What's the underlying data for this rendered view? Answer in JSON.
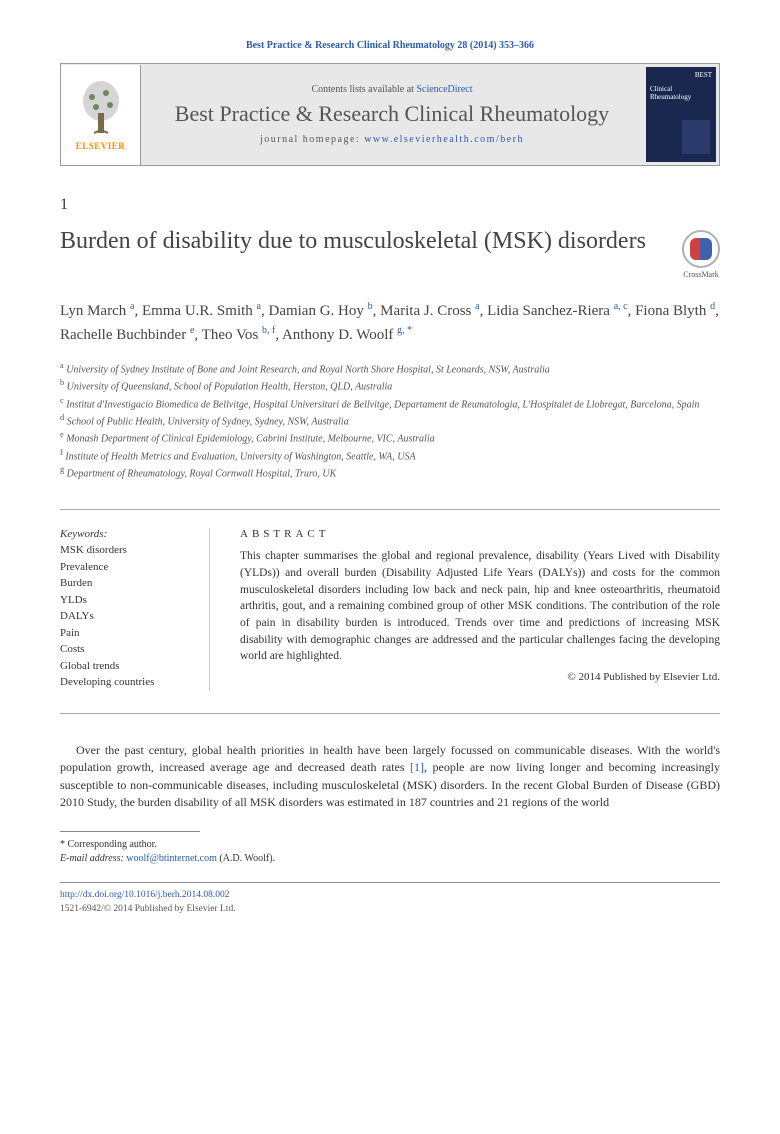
{
  "header_ref": "Best Practice & Research Clinical Rheumatology 28 (2014) 353–366",
  "journal_box": {
    "contents_prefix": "Contents lists available at ",
    "contents_link": "ScienceDirect",
    "journal_name": "Best Practice & Research Clinical Rheumatology",
    "homepage_prefix": "journal homepage: ",
    "homepage_url": "www.elsevierhealth.com/berh",
    "publisher": "ELSEVIER",
    "cover_top": "BEST",
    "cover_line": "Clinical Rheumatology"
  },
  "section_number": "1",
  "article_title": "Burden of disability due to musculoskeletal (MSK) disorders",
  "crossmark_label": "CrossMark",
  "authors_html": "Lyn March <sup>a</sup>, Emma U.R. Smith <sup>a</sup>, Damian G. Hoy <sup>b</sup>, Marita J. Cross <sup>a</sup>, Lidia Sanchez-Riera <sup>a, c</sup>, Fiona Blyth <sup>d</sup>, Rachelle Buchbinder <sup>e</sup>, Theo Vos <sup>b, f</sup>, Anthony D. Woolf <sup>g, *</sup>",
  "affiliations": [
    {
      "sup": "a",
      "text": "University of Sydney Institute of Bone and Joint Research, and Royal North Shore Hospital, St Leonards, NSW, Australia"
    },
    {
      "sup": "b",
      "text": "University of Queensland, School of Population Health, Herston, QLD, Australia"
    },
    {
      "sup": "c",
      "text": "Institut d'Investigacio Biomedica de Bellvitge, Hospital Universitari de Bellvitge, Departament de Reumatologia, L'Hospitalet de Llobregat, Barcelona, Spain"
    },
    {
      "sup": "d",
      "text": "School of Public Health, University of Sydney, Sydney, NSW, Australia"
    },
    {
      "sup": "e",
      "text": "Monash Department of Clinical Epidemiology, Cabrini Institute, Melbourne, VIC, Australia"
    },
    {
      "sup": "f",
      "text": "Institute of Health Metrics and Evaluation, University of Washington, Seattle, WA, USA"
    },
    {
      "sup": "g",
      "text": "Department of Rheumatology, Royal Cornwall Hospital, Truro, UK"
    }
  ],
  "keywords_heading": "Keywords:",
  "keywords": [
    "MSK disorders",
    "Prevalence",
    "Burden",
    "YLDs",
    "DALYs",
    "Pain",
    "Costs",
    "Global trends",
    "Developing countries"
  ],
  "abstract_heading": "ABSTRACT",
  "abstract_text": "This chapter summarises the global and regional prevalence, disability (Years Lived with Disability (YLDs)) and overall burden (Disability Adjusted Life Years (DALYs)) and costs for the common musculoskeletal disorders including low back and neck pain, hip and knee osteoarthritis, rheumatoid arthritis, gout, and a remaining combined group of other MSK conditions. The contribution of the role of pain in disability burden is introduced. Trends over time and predictions of increasing MSK disability with demographic changes are addressed and the particular challenges facing the developing world are highlighted.",
  "abstract_copyright": "© 2014 Published by Elsevier Ltd.",
  "body_para_pre": "Over the past century, global health priorities in health have been largely focussed on communicable diseases. With the world's population growth, increased average age and decreased death rates ",
  "body_para_ref": "[1]",
  "body_para_post": ", people are now living longer and becoming increasingly susceptible to non-communicable diseases, including musculoskeletal (MSK) disorders. In the recent Global Burden of Disease (GBD) 2010 Study, the burden disability of all MSK disorders was estimated in 187 countries and 21 regions of the world",
  "footnotes": {
    "corresponding": "* Corresponding author.",
    "email_label": "E-mail address:",
    "email": "woolf@btinternet.com",
    "email_name": "(A.D. Woolf)."
  },
  "footer": {
    "doi": "http://dx.doi.org/10.1016/j.berh.2014.08.002",
    "issn_line": "1521-6942/© 2014 Published by Elsevier Ltd."
  },
  "colors": {
    "link": "#2a5caa",
    "elsevier_orange": "#ff8c00",
    "box_bg": "#e8e8e8",
    "cover_bg": "#1a2850"
  }
}
